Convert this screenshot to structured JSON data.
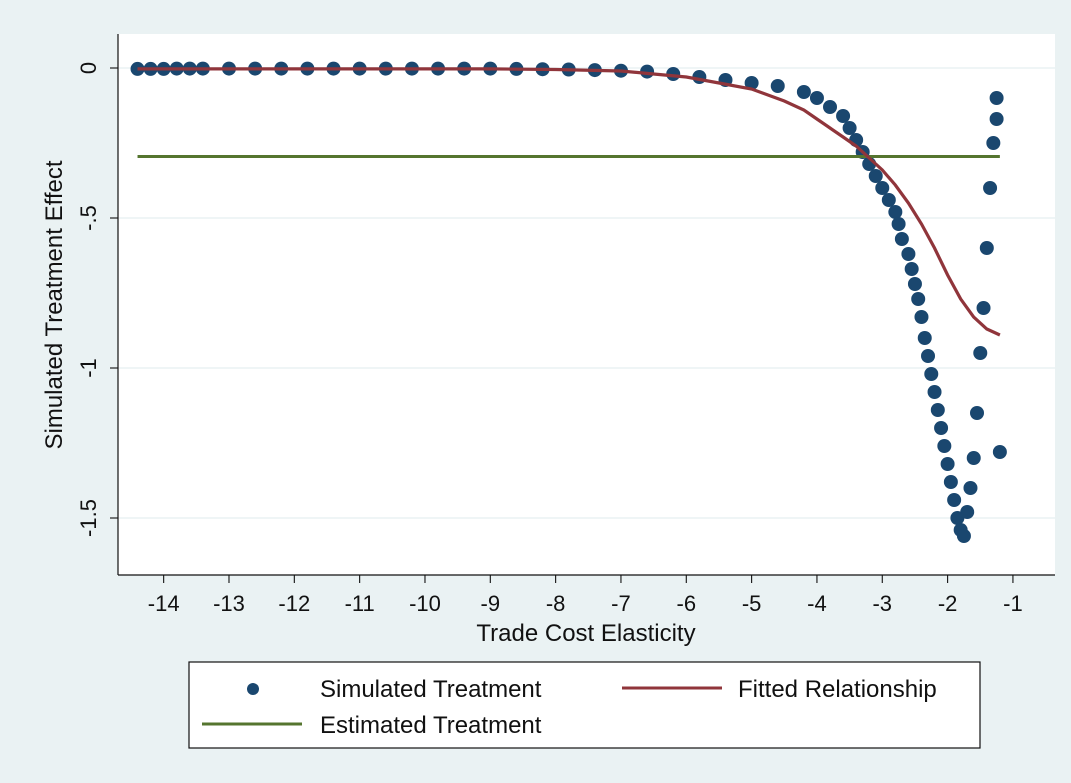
{
  "chart_data": {
    "type": "scatter",
    "title": "",
    "xlabel": "Trade Cost Elasticity",
    "ylabel": "Simulated Treatment Effect",
    "xlim": [
      -14.5,
      -0.8
    ],
    "ylim": [
      -1.6,
      0.05
    ],
    "xticks": [
      -14,
      -13,
      -12,
      -11,
      -10,
      -9,
      -8,
      -7,
      -6,
      -5,
      -4,
      -3,
      -2,
      -1
    ],
    "xtick_labels": [
      "-14",
      "-13",
      "-12",
      "-11",
      "-10",
      "-9",
      "-8",
      "-7",
      "-6",
      "-5",
      "-4",
      "-3",
      "-2",
      "-1"
    ],
    "yticks": [
      0,
      -0.5,
      -1,
      -1.5
    ],
    "ytick_labels": [
      "0",
      "-.5",
      "-1",
      "-1.5"
    ],
    "grid": true,
    "legend_position": "bottom",
    "colors": {
      "plot_region": "#ffffff",
      "outer_background": "#eaf2f3",
      "grid": "#eaf2f3",
      "scatter": "#1a476f",
      "fitted": "#90353b",
      "estimated": "#55752f"
    },
    "series": [
      {
        "name": "Simulated Treatment",
        "kind": "scatter",
        "points": [
          [
            -14.4,
            -0.003
          ],
          [
            -14.2,
            -0.003
          ],
          [
            -14.0,
            -0.003
          ],
          [
            -13.8,
            -0.002
          ],
          [
            -13.6,
            -0.002
          ],
          [
            -13.4,
            -0.002
          ],
          [
            -13.0,
            -0.002
          ],
          [
            -12.6,
            -0.002
          ],
          [
            -12.2,
            -0.002
          ],
          [
            -11.8,
            -0.002
          ],
          [
            -11.4,
            -0.002
          ],
          [
            -11.0,
            -0.002
          ],
          [
            -10.6,
            -0.002
          ],
          [
            -10.2,
            -0.002
          ],
          [
            -9.8,
            -0.002
          ],
          [
            -9.4,
            -0.002
          ],
          [
            -9.0,
            -0.002
          ],
          [
            -8.6,
            -0.003
          ],
          [
            -8.2,
            -0.004
          ],
          [
            -7.8,
            -0.005
          ],
          [
            -7.4,
            -0.007
          ],
          [
            -7.0,
            -0.009
          ],
          [
            -6.6,
            -0.012
          ],
          [
            -6.2,
            -0.02
          ],
          [
            -5.8,
            -0.03
          ],
          [
            -5.4,
            -0.04
          ],
          [
            -5.0,
            -0.05
          ],
          [
            -4.6,
            -0.06
          ],
          [
            -4.2,
            -0.08
          ],
          [
            -4.0,
            -0.1
          ],
          [
            -3.8,
            -0.13
          ],
          [
            -3.6,
            -0.16
          ],
          [
            -3.5,
            -0.2
          ],
          [
            -3.4,
            -0.24
          ],
          [
            -3.3,
            -0.28
          ],
          [
            -3.2,
            -0.32
          ],
          [
            -3.1,
            -0.36
          ],
          [
            -3.0,
            -0.4
          ],
          [
            -2.9,
            -0.44
          ],
          [
            -2.8,
            -0.48
          ],
          [
            -2.75,
            -0.52
          ],
          [
            -2.7,
            -0.57
          ],
          [
            -2.6,
            -0.62
          ],
          [
            -2.55,
            -0.67
          ],
          [
            -2.5,
            -0.72
          ],
          [
            -2.45,
            -0.77
          ],
          [
            -2.4,
            -0.83
          ],
          [
            -2.35,
            -0.9
          ],
          [
            -2.3,
            -0.96
          ],
          [
            -2.25,
            -1.02
          ],
          [
            -2.2,
            -1.08
          ],
          [
            -2.15,
            -1.14
          ],
          [
            -2.1,
            -1.2
          ],
          [
            -2.05,
            -1.26
          ],
          [
            -2.0,
            -1.32
          ],
          [
            -1.95,
            -1.38
          ],
          [
            -1.9,
            -1.44
          ],
          [
            -1.85,
            -1.5
          ],
          [
            -1.8,
            -1.54
          ],
          [
            -1.75,
            -1.56
          ],
          [
            -1.7,
            -1.48
          ],
          [
            -1.65,
            -1.4
          ],
          [
            -1.6,
            -1.3
          ],
          [
            -1.55,
            -1.15
          ],
          [
            -1.5,
            -0.95
          ],
          [
            -1.45,
            -0.8
          ],
          [
            -1.4,
            -0.6
          ],
          [
            -1.35,
            -0.4
          ],
          [
            -1.3,
            -0.25
          ],
          [
            -1.25,
            -0.17
          ],
          [
            -1.25,
            -0.1
          ],
          [
            -1.2,
            -1.28
          ]
        ]
      },
      {
        "name": "Fitted Relationship",
        "kind": "line",
        "points": [
          [
            -14.4,
            -0.003
          ],
          [
            -13.0,
            -0.003
          ],
          [
            -11.0,
            -0.003
          ],
          [
            -9.0,
            -0.003
          ],
          [
            -8.0,
            -0.005
          ],
          [
            -7.0,
            -0.01
          ],
          [
            -6.5,
            -0.02
          ],
          [
            -6.0,
            -0.03
          ],
          [
            -5.5,
            -0.05
          ],
          [
            -5.0,
            -0.07
          ],
          [
            -4.5,
            -0.11
          ],
          [
            -4.2,
            -0.14
          ],
          [
            -4.0,
            -0.17
          ],
          [
            -3.8,
            -0.2
          ],
          [
            -3.6,
            -0.23
          ],
          [
            -3.4,
            -0.26
          ],
          [
            -3.2,
            -0.3
          ],
          [
            -3.0,
            -0.34
          ],
          [
            -2.8,
            -0.39
          ],
          [
            -2.6,
            -0.45
          ],
          [
            -2.4,
            -0.52
          ],
          [
            -2.2,
            -0.6
          ],
          [
            -2.0,
            -0.69
          ],
          [
            -1.8,
            -0.77
          ],
          [
            -1.6,
            -0.83
          ],
          [
            -1.4,
            -0.87
          ],
          [
            -1.2,
            -0.89
          ]
        ]
      },
      {
        "name": "Estimated Treatment",
        "kind": "hline",
        "y": -0.295,
        "x": [
          -14.4,
          -1.2
        ]
      }
    ]
  }
}
